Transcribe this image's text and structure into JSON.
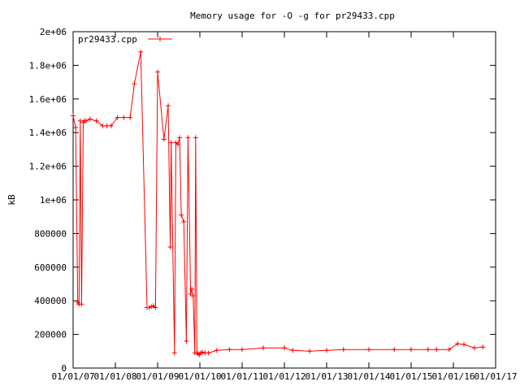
{
  "chart_data": {
    "type": "line",
    "title": "Memory usage for -O -g for pr29433.cpp",
    "ylabel": "kB",
    "xlabel": "",
    "xlim": [
      0,
      1
    ],
    "ylim": [
      0,
      2000000
    ],
    "grid": false,
    "legend_position": "top-left",
    "x_tick_labels": [
      "01/01/07",
      "01/01/08",
      "01/01/09",
      "01/01/10",
      "01/01/11",
      "01/01/12",
      "01/01/13",
      "01/01/14",
      "01/01/15",
      "01/01/16",
      "01/01/17"
    ],
    "y_ticks": [
      0,
      200000,
      400000,
      600000,
      800000,
      1000000,
      1200000,
      1400000,
      1600000,
      1800000,
      2000000
    ],
    "y_tick_labels": [
      "0",
      "200000",
      "400000",
      "600000",
      "800000",
      "1e+06",
      "1.2e+06",
      "1.4e+06",
      "1.6e+06",
      "1.8e+06",
      "2e+06"
    ],
    "series": [
      {
        "name": "pr29433.cpp",
        "color": "#ff0000",
        "x": [
          0.0,
          0.006,
          0.011,
          0.014,
          0.017,
          0.02,
          0.024,
          0.027,
          0.031,
          0.04,
          0.055,
          0.07,
          0.08,
          0.09,
          0.105,
          0.12,
          0.135,
          0.145,
          0.16,
          0.175,
          0.18,
          0.185,
          0.19,
          0.195,
          0.2,
          0.215,
          0.225,
          0.23,
          0.232,
          0.24,
          0.243,
          0.248,
          0.252,
          0.256,
          0.262,
          0.268,
          0.272,
          0.278,
          0.281,
          0.284,
          0.288,
          0.29,
          0.293,
          0.296,
          0.299,
          0.302,
          0.306,
          0.312,
          0.32,
          0.34,
          0.37,
          0.4,
          0.45,
          0.5,
          0.52,
          0.56,
          0.6,
          0.64,
          0.7,
          0.76,
          0.8,
          0.84,
          0.86,
          0.89,
          0.91,
          0.925,
          0.95,
          0.97
        ],
        "y": [
          1500000,
          1430000,
          390000,
          380000,
          1470000,
          380000,
          1460000,
          1470000,
          1470000,
          1480000,
          1470000,
          1440000,
          1440000,
          1440000,
          1490000,
          1490000,
          1490000,
          1690000,
          1880000,
          360000,
          360000,
          365000,
          370000,
          360000,
          1760000,
          1360000,
          1560000,
          720000,
          1340000,
          90000,
          1340000,
          1330000,
          1370000,
          910000,
          870000,
          160000,
          1370000,
          440000,
          470000,
          430000,
          90000,
          1370000,
          90000,
          85000,
          80000,
          90000,
          95000,
          90000,
          90000,
          105000,
          110000,
          110000,
          120000,
          120000,
          105000,
          100000,
          105000,
          110000,
          110000,
          110000,
          110000,
          110000,
          110000,
          110000,
          145000,
          140000,
          120000,
          125000
        ]
      }
    ]
  }
}
